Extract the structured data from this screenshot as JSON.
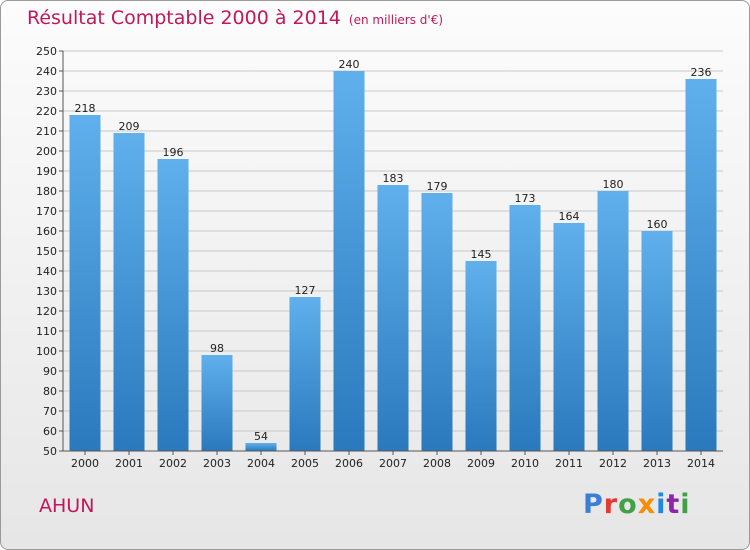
{
  "header": {
    "title": "Résultat Comptable 2000 à 2014",
    "subtitle": "(en milliers d'€)"
  },
  "footer": {
    "commune": "AHUN",
    "logo": [
      "P",
      "r",
      "o",
      "x",
      "i",
      "t",
      "i"
    ],
    "logo_colors": [
      "#3a7fd5",
      "#e53935",
      "#43a047",
      "#fb8c00",
      "#1e88e5",
      "#8e24aa",
      "#43a047"
    ]
  },
  "colors": {
    "title": "#c2185b",
    "bar_top": "#5fb0ec",
    "bar_bottom": "#2a79bd",
    "grid": "#c8c8c8"
  },
  "chart_data": {
    "type": "bar",
    "title": "Résultat Comptable 2000 à 2014",
    "xlabel": "",
    "ylabel": "",
    "categories": [
      "2000",
      "2001",
      "2002",
      "2003",
      "2004",
      "2005",
      "2006",
      "2007",
      "2008",
      "2009",
      "2010",
      "2011",
      "2012",
      "2013",
      "2014"
    ],
    "values": [
      218,
      209,
      196,
      98,
      54,
      127,
      240,
      183,
      179,
      145,
      173,
      164,
      180,
      160,
      236
    ],
    "ylim": [
      50,
      250
    ],
    "ytick_step": 10,
    "grid": true,
    "data_labels": true
  }
}
